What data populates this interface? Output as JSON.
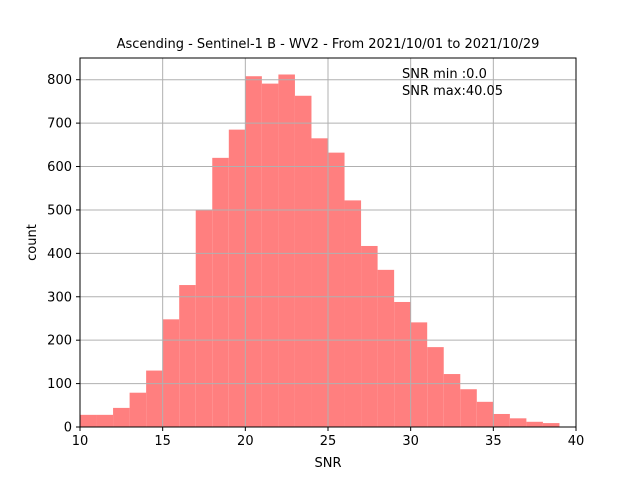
{
  "chart_data": {
    "type": "bar",
    "title": "Ascending - Sentinel-1 B - WV2 - From 2021/10/01 to 2021/10/29",
    "xlabel": "SNR",
    "ylabel": "count",
    "xlim": [
      10,
      40
    ],
    "ylim": [
      0,
      850
    ],
    "xticks": [
      10,
      15,
      20,
      25,
      30,
      35,
      40
    ],
    "yticks": [
      0,
      100,
      200,
      300,
      400,
      500,
      600,
      700,
      800
    ],
    "grid": true,
    "bar_color": "#ff7f7f",
    "bin_width": 1.0,
    "series": [
      {
        "bins": [
          {
            "x0": 10,
            "x1": 11,
            "count": 28
          },
          {
            "x0": 11,
            "x1": 12,
            "count": 28
          },
          {
            "x0": 12,
            "x1": 13,
            "count": 44
          },
          {
            "x0": 13,
            "x1": 14,
            "count": 79
          },
          {
            "x0": 14,
            "x1": 15,
            "count": 130
          },
          {
            "x0": 15,
            "x1": 16,
            "count": 248
          },
          {
            "x0": 16,
            "x1": 17,
            "count": 327
          },
          {
            "x0": 17,
            "x1": 18,
            "count": 500
          },
          {
            "x0": 18,
            "x1": 19,
            "count": 620
          },
          {
            "x0": 19,
            "x1": 20,
            "count": 685
          },
          {
            "x0": 20,
            "x1": 21,
            "count": 808
          },
          {
            "x0": 21,
            "x1": 22,
            "count": 791
          },
          {
            "x0": 22,
            "x1": 23,
            "count": 812
          },
          {
            "x0": 23,
            "x1": 24,
            "count": 763
          },
          {
            "x0": 24,
            "x1": 25,
            "count": 665
          },
          {
            "x0": 25,
            "x1": 26,
            "count": 632
          },
          {
            "x0": 26,
            "x1": 27,
            "count": 522
          },
          {
            "x0": 27,
            "x1": 28,
            "count": 417
          },
          {
            "x0": 28,
            "x1": 29,
            "count": 362
          },
          {
            "x0": 29,
            "x1": 30,
            "count": 288
          },
          {
            "x0": 30,
            "x1": 31,
            "count": 241
          },
          {
            "x0": 31,
            "x1": 32,
            "count": 184
          },
          {
            "x0": 32,
            "x1": 33,
            "count": 122
          },
          {
            "x0": 33,
            "x1": 34,
            "count": 87
          },
          {
            "x0": 34,
            "x1": 35,
            "count": 58
          },
          {
            "x0": 35,
            "x1": 36,
            "count": 30
          },
          {
            "x0": 36,
            "x1": 37,
            "count": 20
          },
          {
            "x0": 37,
            "x1": 38,
            "count": 12
          },
          {
            "x0": 38,
            "x1": 39,
            "count": 9
          }
        ]
      }
    ],
    "annotations": [
      "SNR min :0.0",
      "SNR max:40.05"
    ]
  }
}
